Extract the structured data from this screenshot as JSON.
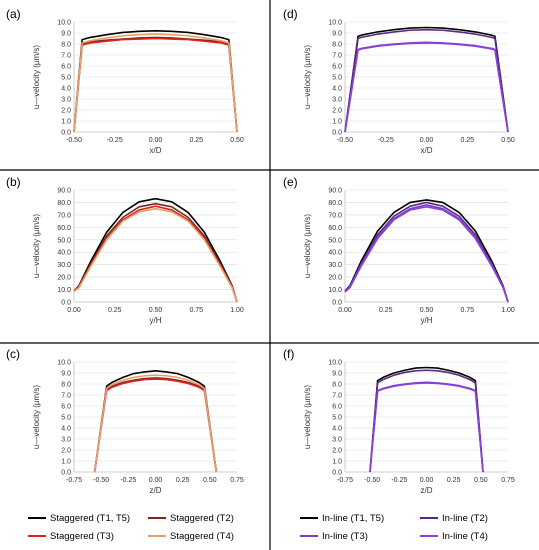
{
  "chart_data": [
    {
      "id": "a",
      "type": "line",
      "panel_label": "(a)",
      "xlabel": "x/D",
      "ylabel": "u—velocity (µm/s)",
      "xlim": [
        -0.5,
        0.5
      ],
      "ylim": [
        0,
        10
      ],
      "xticks": [
        "-0.50",
        "-0.25",
        "0.00",
        "0.25",
        "0.50"
      ],
      "yticks": [
        "0.0",
        "1.0",
        "2.0",
        "3.0",
        "4.0",
        "5.0",
        "6.0",
        "7.0",
        "8.0",
        "9.0",
        "10.0"
      ],
      "x": [
        -0.5,
        -0.45,
        -0.4,
        -0.3,
        -0.2,
        -0.1,
        0,
        0.1,
        0.2,
        0.3,
        0.4,
        0.45,
        0.5
      ],
      "series": [
        {
          "name": "Staggered (T1, T5)",
          "color": "#000000",
          "values": [
            0,
            8.4,
            8.6,
            8.85,
            9.05,
            9.15,
            9.2,
            9.15,
            9.05,
            8.85,
            8.6,
            8.4,
            0
          ]
        },
        {
          "name": "Staggered (T2)",
          "color": "#7b2a1e",
          "values": [
            0,
            8.0,
            8.2,
            8.35,
            8.45,
            8.55,
            8.6,
            8.55,
            8.45,
            8.35,
            8.2,
            8.0,
            0
          ]
        },
        {
          "name": "Staggered (T3)",
          "color": "#e0231c",
          "values": [
            0,
            7.9,
            8.1,
            8.25,
            8.4,
            8.45,
            8.5,
            8.45,
            8.4,
            8.25,
            8.1,
            7.9,
            0
          ]
        },
        {
          "name": "Staggered (T4)",
          "color": "#e8a06a",
          "values": [
            0,
            8.1,
            8.3,
            8.55,
            8.75,
            8.85,
            8.9,
            8.85,
            8.75,
            8.55,
            8.3,
            8.1,
            0
          ]
        }
      ]
    },
    {
      "id": "b",
      "type": "line",
      "panel_label": "(b)",
      "xlabel": "y/H",
      "ylabel": "u—velocity (µm/s)",
      "xlim": [
        0,
        1
      ],
      "ylim": [
        0,
        90
      ],
      "xticks": [
        "0.00",
        "0.25",
        "0.50",
        "0.75",
        "1.00"
      ],
      "yticks": [
        "0.0",
        "10.0",
        "20.0",
        "30.0",
        "40.0",
        "50.0",
        "60.0",
        "70.0",
        "80.0",
        "90.0"
      ],
      "x": [
        0,
        0.03,
        0.1,
        0.2,
        0.3,
        0.4,
        0.5,
        0.6,
        0.7,
        0.8,
        0.9,
        0.97,
        1
      ],
      "series": [
        {
          "name": "Staggered (T1, T5)",
          "color": "#000000",
          "values": [
            9,
            13,
            32,
            56,
            72,
            80.5,
            83,
            80.5,
            72,
            56,
            32,
            13,
            0
          ]
        },
        {
          "name": "Staggered (T2)",
          "color": "#7b2a1e",
          "values": [
            9,
            12.5,
            30,
            53,
            68,
            76.5,
            79,
            76.5,
            68,
            53,
            30,
            12.5,
            0
          ]
        },
        {
          "name": "Staggered (T3)",
          "color": "#e0231c",
          "values": [
            9,
            12,
            29,
            51,
            66,
            74,
            77,
            74,
            66,
            51,
            29,
            12,
            0
          ]
        },
        {
          "name": "Staggered (T4)",
          "color": "#e8a06a",
          "values": [
            8.5,
            11.5,
            28,
            50,
            65,
            72.5,
            75,
            72.5,
            65,
            50,
            28,
            11.5,
            0
          ]
        }
      ]
    },
    {
      "id": "c",
      "type": "line",
      "panel_label": "(c)",
      "xlabel": "z/D",
      "ylabel": "u—velocity (µm/s)",
      "xlim": [
        -0.75,
        0.75
      ],
      "ylim": [
        0,
        10
      ],
      "xticks": [
        "-0.75",
        "-0.50",
        "-0.25",
        "0.00",
        "0.25",
        "0.50",
        "0.75"
      ],
      "yticks": [
        "0.0",
        "1.0",
        "2.0",
        "3.0",
        "4.0",
        "5.0",
        "6.0",
        "7.0",
        "8.0",
        "9.0",
        "10.0"
      ],
      "x": [
        -0.56,
        -0.45,
        -0.4,
        -0.3,
        -0.2,
        -0.1,
        0,
        0.1,
        0.2,
        0.3,
        0.4,
        0.45,
        0.56
      ],
      "series": [
        {
          "name": "Staggered (T1, T5)",
          "color": "#000000",
          "values": [
            0,
            7.8,
            8.15,
            8.6,
            8.95,
            9.1,
            9.2,
            9.1,
            8.95,
            8.6,
            8.15,
            7.8,
            0
          ]
        },
        {
          "name": "Staggered (T2)",
          "color": "#7b2a1e",
          "values": [
            0,
            7.5,
            7.8,
            8.15,
            8.35,
            8.5,
            8.55,
            8.5,
            8.35,
            8.15,
            7.8,
            7.5,
            0
          ]
        },
        {
          "name": "Staggered (T3)",
          "color": "#e0231c",
          "values": [
            0,
            7.4,
            7.7,
            8.05,
            8.25,
            8.4,
            8.45,
            8.4,
            8.25,
            8.05,
            7.7,
            7.4,
            0
          ]
        },
        {
          "name": "Staggered (T4)",
          "color": "#e8a06a",
          "values": [
            0,
            7.6,
            7.95,
            8.35,
            8.6,
            8.75,
            8.8,
            8.75,
            8.6,
            8.35,
            7.95,
            7.6,
            0
          ]
        }
      ]
    },
    {
      "id": "d",
      "type": "line",
      "panel_label": "(d)",
      "xlabel": "x/D",
      "ylabel": "u—velocity (µm/s)",
      "xlim": [
        -0.5,
        0.5
      ],
      "ylim": [
        0,
        10
      ],
      "xticks": [
        "-0.50",
        "-0.25",
        "0.00",
        "0.25",
        "0.50"
      ],
      "yticks": [
        "0.0",
        "1.0",
        "2.0",
        "3.0",
        "4.0",
        "5.0",
        "6.0",
        "7.0",
        "8.0",
        "9.0",
        "10.0"
      ],
      "x": [
        -0.5,
        -0.42,
        -0.4,
        -0.3,
        -0.2,
        -0.1,
        0,
        0.1,
        0.2,
        0.3,
        0.4,
        0.42,
        0.5
      ],
      "series": [
        {
          "name": "In-line (T1, T5)",
          "color": "#000000",
          "values": [
            0,
            8.7,
            8.8,
            9.1,
            9.3,
            9.45,
            9.5,
            9.45,
            9.3,
            9.1,
            8.8,
            8.7,
            0
          ]
        },
        {
          "name": "In-line (T2)",
          "color": "#5a2a82",
          "values": [
            0,
            8.5,
            8.6,
            8.9,
            9.1,
            9.25,
            9.3,
            9.25,
            9.1,
            8.9,
            8.6,
            8.5,
            0
          ]
        },
        {
          "name": "In-line (T3)",
          "color": "#7a3fc0",
          "values": [
            0,
            7.5,
            7.6,
            7.85,
            8.0,
            8.1,
            8.15,
            8.1,
            8.0,
            7.85,
            7.6,
            7.5,
            0
          ]
        },
        {
          "name": "In-line (T4)",
          "color": "#8b3fe0",
          "values": [
            0,
            7.45,
            7.55,
            7.8,
            7.95,
            8.05,
            8.1,
            8.05,
            7.95,
            7.8,
            7.55,
            7.45,
            0
          ]
        }
      ]
    },
    {
      "id": "e",
      "type": "line",
      "panel_label": "(e)",
      "xlabel": "y/H",
      "ylabel": "u—velocity (µm/s)",
      "xlim": [
        0,
        1
      ],
      "ylim": [
        0,
        90
      ],
      "xticks": [
        "0.00",
        "0.25",
        "0.50",
        "0.75",
        "1.00"
      ],
      "yticks": [
        "0.0",
        "10.0",
        "20.0",
        "30.0",
        "40.0",
        "50.0",
        "60.0",
        "70.0",
        "80.0",
        "90.0"
      ],
      "x": [
        0,
        0.03,
        0.1,
        0.2,
        0.3,
        0.4,
        0.5,
        0.6,
        0.7,
        0.8,
        0.9,
        0.97,
        1
      ],
      "series": [
        {
          "name": "In-line (T1, T5)",
          "color": "#000000",
          "values": [
            9,
            13,
            33,
            57,
            72,
            80,
            82,
            80,
            72,
            57,
            33,
            13,
            0
          ]
        },
        {
          "name": "In-line (T2)",
          "color": "#5a2a82",
          "values": [
            9,
            12.5,
            31,
            54,
            69,
            77,
            80,
            77,
            69,
            54,
            31,
            12.5,
            0
          ]
        },
        {
          "name": "In-line (T3)",
          "color": "#7a3fc0",
          "values": [
            8.5,
            12,
            30,
            52,
            67,
            75,
            78,
            75,
            67,
            52,
            30,
            12,
            0
          ]
        },
        {
          "name": "In-line (T4)",
          "color": "#8b3fe0",
          "values": [
            8,
            11.5,
            29,
            51,
            66,
            74,
            76.5,
            74,
            66,
            51,
            29,
            11.5,
            0
          ]
        }
      ]
    },
    {
      "id": "f",
      "type": "line",
      "panel_label": "(f)",
      "xlabel": "z/D",
      "ylabel": "u—velocity (µm/s)",
      "xlim": [
        -0.75,
        0.75
      ],
      "ylim": [
        0,
        10
      ],
      "xticks": [
        "-0.75",
        "-0.50",
        "-0.25",
        "0.00",
        "0.25",
        "0.50",
        "0.75"
      ],
      "yticks": [
        "0.0",
        "1.0",
        "2.0",
        "3.0",
        "4.0",
        "5.0",
        "6.0",
        "7.0",
        "8.0",
        "9.0",
        "10.0"
      ],
      "x": [
        -0.52,
        -0.45,
        -0.4,
        -0.3,
        -0.2,
        -0.1,
        0,
        0.1,
        0.2,
        0.3,
        0.4,
        0.45,
        0.52
      ],
      "series": [
        {
          "name": "In-line (T1, T5)",
          "color": "#000000",
          "values": [
            0,
            8.3,
            8.6,
            9.0,
            9.25,
            9.45,
            9.5,
            9.45,
            9.25,
            9.0,
            8.6,
            8.3,
            0
          ]
        },
        {
          "name": "In-line (T2)",
          "color": "#5a2a82",
          "values": [
            0,
            8.1,
            8.4,
            8.8,
            9.05,
            9.2,
            9.25,
            9.2,
            9.05,
            8.8,
            8.4,
            8.1,
            0
          ]
        },
        {
          "name": "In-line (T3)",
          "color": "#7a3fc0",
          "values": [
            0,
            7.4,
            7.6,
            7.85,
            8.0,
            8.1,
            8.15,
            8.1,
            8.0,
            7.85,
            7.6,
            7.4,
            0
          ]
        },
        {
          "name": "In-line (T4)",
          "color": "#8b3fe0",
          "values": [
            0,
            7.35,
            7.55,
            7.8,
            7.95,
            8.05,
            8.1,
            8.05,
            7.95,
            7.8,
            7.55,
            7.35,
            0
          ]
        }
      ]
    }
  ],
  "legends": {
    "left": [
      {
        "label": "Staggered (T1, T5)",
        "color": "#000000"
      },
      {
        "label": "Staggered (T2)",
        "color": "#7b2a1e"
      },
      {
        "label": "Staggered (T3)",
        "color": "#e0231c"
      },
      {
        "label": "Staggered (T4)",
        "color": "#e8a06a"
      }
    ],
    "right": [
      {
        "label": "In-line (T1, T5)",
        "color": "#000000"
      },
      {
        "label": "In-line (T2)",
        "color": "#5a2a82"
      },
      {
        "label": "In-line (T3)",
        "color": "#7a3fc0"
      },
      {
        "label": "In-line (T4)",
        "color": "#8b3fe0"
      }
    ]
  }
}
